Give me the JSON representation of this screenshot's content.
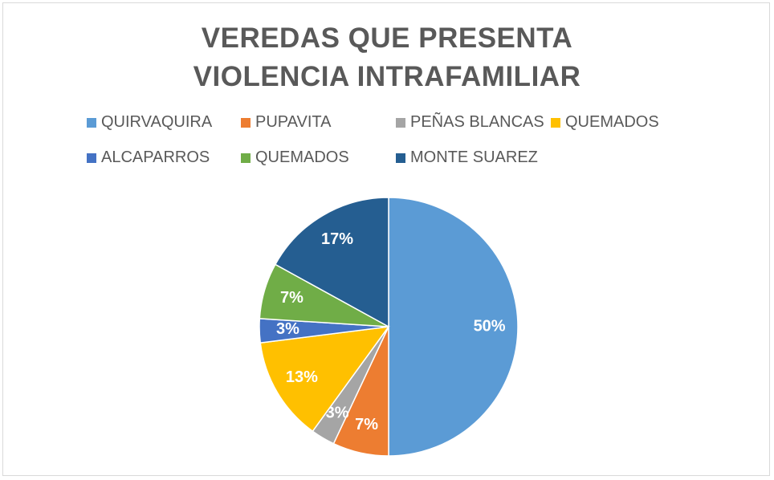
{
  "chart_data": {
    "type": "pie",
    "title": "VEREDAS QUE PRESENTA VIOLENCIA INTRAFAMILIAR",
    "categories": [
      "QUIRVAQUIRA",
      "PUPAVITA",
      "PEÑAS BLANCAS",
      "QUEMADOS",
      "ALCAPARROS",
      "QUEMADOS",
      "MONTE SUAREZ"
    ],
    "values": [
      50,
      7,
      3,
      13,
      3,
      7,
      17
    ],
    "value_labels": [
      "50%",
      "7%",
      "3%",
      "13%",
      "3%",
      "7%",
      "17%"
    ],
    "colors": [
      "#5b9bd5",
      "#ed7d31",
      "#a5a5a5",
      "#ffc000",
      "#4472c4",
      "#70ad47",
      "#255e91"
    ],
    "legend": "top"
  }
}
